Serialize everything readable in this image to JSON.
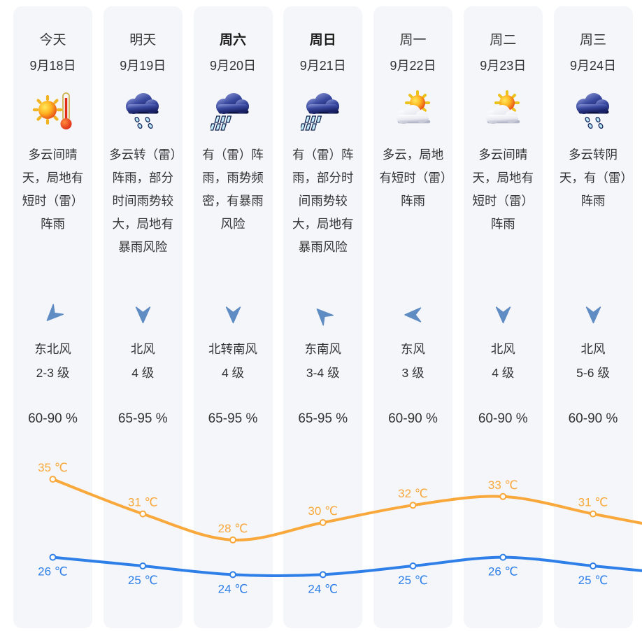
{
  "widget": {
    "title": "7-day-weather-forecast"
  },
  "colors": {
    "column_bg": "#f5f6fa",
    "text": "#333333",
    "wind_arrow": "#5E8CC3",
    "high_line": "#F9A83C",
    "low_line": "#2E7FE8"
  },
  "columns": [
    {
      "day": "今天",
      "date": "9月18日",
      "emphasis": false,
      "icon": "sun-thermo",
      "desc": "多云间晴天，局地有短时（雷）阵雨",
      "wind_dir": "东北风",
      "wind_level": "2-3 级",
      "humidity": "60-90 %",
      "arrow_rotation": 45
    },
    {
      "day": "明天",
      "date": "9月19日",
      "emphasis": false,
      "icon": "rain-drops",
      "desc": "多云转（雷）阵雨，部分时间雨势较大，局地有暴雨风险",
      "wind_dir": "北风",
      "wind_level": "4 级",
      "humidity": "65-95 %",
      "arrow_rotation": 0
    },
    {
      "day": "周六",
      "date": "9月20日",
      "emphasis": true,
      "icon": "rain-heavy",
      "desc": "有（雷）阵雨，雨势频密，有暴雨风险",
      "wind_dir": "北转南风",
      "wind_level": "4 级",
      "humidity": "65-95 %",
      "arrow_rotation": 0
    },
    {
      "day": "周日",
      "date": "9月21日",
      "emphasis": true,
      "icon": "rain-heavy",
      "desc": "有（雷）阵雨，部分时间雨势较大，局地有暴雨风险",
      "wind_dir": "东南风",
      "wind_level": "3-4 级",
      "humidity": "65-95 %",
      "arrow_rotation": 135
    },
    {
      "day": "周一",
      "date": "9月22日",
      "emphasis": false,
      "icon": "sun-cloud",
      "desc": "多云，局地有短时（雷）阵雨",
      "wind_dir": "东风",
      "wind_level": "3 级",
      "humidity": "60-90 %",
      "arrow_rotation": 90
    },
    {
      "day": "周二",
      "date": "9月23日",
      "emphasis": false,
      "icon": "sun-cloud",
      "desc": "多云间晴天，局地有短时（雷）阵雨",
      "wind_dir": "北风",
      "wind_level": "4 级",
      "humidity": "60-90 %",
      "arrow_rotation": 0
    },
    {
      "day": "周三",
      "date": "9月24日",
      "emphasis": false,
      "icon": "rain-drops",
      "desc": "多云转阴天，有（雷）阵雨",
      "wind_dir": "北风",
      "wind_level": "5-6 级",
      "humidity": "60-90 %",
      "arrow_rotation": 0
    }
  ],
  "chart_data": {
    "type": "line",
    "categories": [
      "今天",
      "明天",
      "周六",
      "周日",
      "周一",
      "周二",
      "周三"
    ],
    "unit": "℃",
    "grid": false,
    "legend": "none",
    "ylim": [
      22,
      37
    ],
    "series": [
      {
        "id": "high",
        "color": "#F9A83C",
        "values": [
          35,
          31,
          28,
          30,
          32,
          33,
          31
        ],
        "label_position": "above"
      },
      {
        "id": "low",
        "color": "#2E7FE8",
        "values": [
          26,
          25,
          24,
          24,
          25,
          26,
          25
        ],
        "label_position": "below"
      }
    ]
  }
}
